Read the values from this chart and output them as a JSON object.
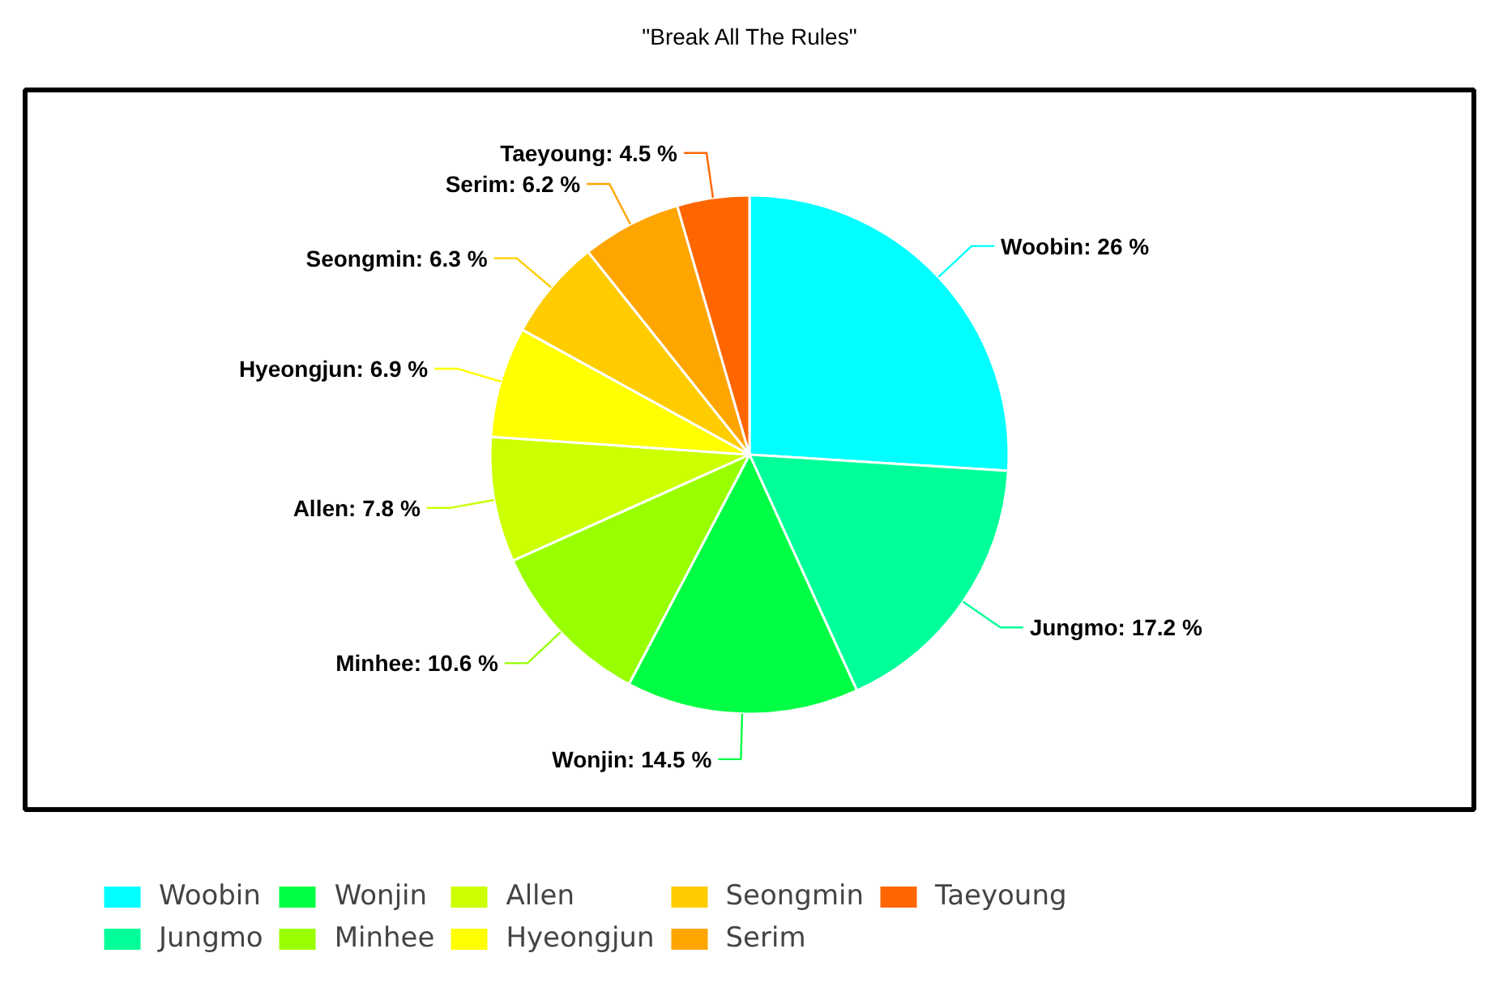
{
  "chart_data": {
    "type": "pie",
    "title": "\"Break All The Rules\"",
    "categories": [
      "Woobin",
      "Jungmo",
      "Wonjin",
      "Minhee",
      "Allen",
      "Hyeongjun",
      "Seongmin",
      "Serim",
      "Taeyoung"
    ],
    "values": [
      26,
      17.2,
      14.5,
      10.6,
      7.8,
      6.9,
      6.3,
      6.2,
      4.5
    ],
    "colors": [
      "#00ffff",
      "#00ff99",
      "#00ff44",
      "#99ff00",
      "#ccff00",
      "#ffff00",
      "#ffcc00",
      "#ffa500",
      "#ff6600"
    ],
    "value_labels": [
      "Woobin: 26 %",
      "Jungmo: 17.2 %",
      "Wonjin: 14.5 %",
      "Minhee: 10.6 %",
      "Allen: 7.8 %",
      "Hyeongjun: 6.9 %",
      "Seongmin: 6.3 %",
      "Serim: 6.2 %",
      "Taeyoung: 4.5 %"
    ],
    "legend": "bottom"
  }
}
